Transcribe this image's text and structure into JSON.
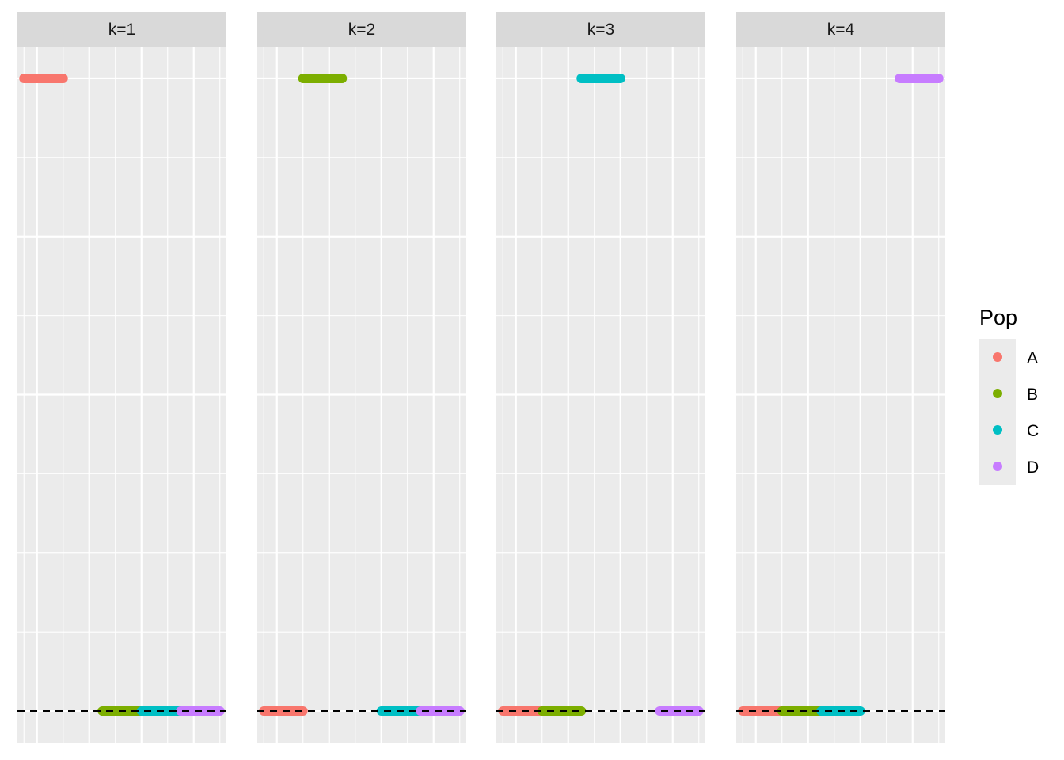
{
  "chart_data": {
    "type": "line",
    "facets": [
      {
        "label": "k=1",
        "segments": [
          {
            "series": "A",
            "x0": 0.25,
            "x1": 1.0,
            "y": 1.0
          },
          {
            "series": "B",
            "x0": 1.75,
            "x1": 2.5,
            "y": 0.0
          },
          {
            "series": "C",
            "x0": 2.5,
            "x1": 3.25,
            "y": 0.0
          },
          {
            "series": "D",
            "x0": 3.25,
            "x1": 4.0,
            "y": 0.0
          }
        ]
      },
      {
        "label": "k=2",
        "segments": [
          {
            "series": "A",
            "x0": 0.25,
            "x1": 1.0,
            "y": 0.0
          },
          {
            "series": "B",
            "x0": 1.0,
            "x1": 1.75,
            "y": 1.0
          },
          {
            "series": "C",
            "x0": 2.5,
            "x1": 3.25,
            "y": 0.0
          },
          {
            "series": "D",
            "x0": 3.25,
            "x1": 4.0,
            "y": 0.0
          }
        ]
      },
      {
        "label": "k=3",
        "segments": [
          {
            "series": "A",
            "x0": 0.25,
            "x1": 1.0,
            "y": 0.0
          },
          {
            "series": "B",
            "x0": 1.0,
            "x1": 1.75,
            "y": 0.0
          },
          {
            "series": "C",
            "x0": 1.75,
            "x1": 2.5,
            "y": 1.0
          },
          {
            "series": "D",
            "x0": 3.25,
            "x1": 4.0,
            "y": 0.0
          }
        ]
      },
      {
        "label": "k=4",
        "segments": [
          {
            "series": "A",
            "x0": 0.25,
            "x1": 1.0,
            "y": 0.0
          },
          {
            "series": "B",
            "x0": 1.0,
            "x1": 1.75,
            "y": 0.0
          },
          {
            "series": "C",
            "x0": 1.75,
            "x1": 2.5,
            "y": 0.0
          },
          {
            "series": "D",
            "x0": 3.25,
            "x1": 4.0,
            "y": 1.0
          }
        ]
      }
    ],
    "reference_line": {
      "y": 0.0,
      "style": "dashed",
      "color": "#000000"
    },
    "xlim": [
      0.125,
      4.125
    ],
    "ylim": [
      -0.05,
      1.05
    ],
    "x_major": [
      0.5,
      1.5,
      2.5,
      3.5
    ],
    "x_minor": [
      0.25,
      1.0,
      2.0,
      3.0,
      4.0
    ],
    "y_major": [
      0.0,
      0.25,
      0.5,
      0.75,
      1.0
    ],
    "y_minor": [
      0.125,
      0.375,
      0.625,
      0.875
    ],
    "grid": true,
    "legend": {
      "title": "Pop",
      "position": "right",
      "entries": [
        {
          "name": "A",
          "color": "#F8766D"
        },
        {
          "name": "B",
          "color": "#7CAE00"
        },
        {
          "name": "C",
          "color": "#00BFC4"
        },
        {
          "name": "D",
          "color": "#C77CFF"
        }
      ]
    },
    "panel_background": "#EBEBEB",
    "strip_background": "#D9D9D9"
  }
}
